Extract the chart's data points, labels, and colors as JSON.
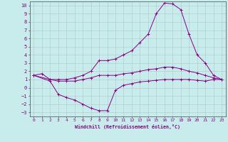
{
  "xlabel": "Windchill (Refroidissement éolien,°C)",
  "background_color": "#c8ecec",
  "grid_color": "#b0c8c8",
  "line_color": "#880088",
  "xlim": [
    -0.5,
    23.5
  ],
  "ylim": [
    -3.5,
    10.5
  ],
  "xticks": [
    0,
    1,
    2,
    3,
    4,
    5,
    6,
    7,
    8,
    9,
    10,
    11,
    12,
    13,
    14,
    15,
    16,
    17,
    18,
    19,
    20,
    21,
    22,
    23
  ],
  "yticks": [
    -3,
    -2,
    -1,
    0,
    1,
    2,
    3,
    4,
    5,
    6,
    7,
    8,
    9,
    10
  ],
  "line_top_x": [
    0,
    2,
    3,
    4,
    5,
    6,
    7,
    8,
    9,
    10,
    11,
    12,
    13,
    14,
    15,
    16,
    17,
    18,
    19,
    20,
    21,
    22,
    23
  ],
  "line_top_y": [
    1.5,
    1.0,
    1.0,
    1.0,
    1.2,
    1.5,
    2.0,
    3.3,
    3.3,
    3.5,
    4.0,
    4.5,
    5.5,
    6.5,
    9.0,
    10.3,
    10.2,
    9.5,
    6.5,
    4.0,
    3.0,
    1.5,
    1.0
  ],
  "line_mid_x": [
    0,
    1,
    2,
    3,
    4,
    5,
    6,
    7,
    8,
    9,
    10,
    11,
    12,
    13,
    14,
    15,
    16,
    17,
    18,
    19,
    20,
    21,
    22,
    23
  ],
  "line_mid_y": [
    1.5,
    1.7,
    1.0,
    0.8,
    0.8,
    0.8,
    1.0,
    1.2,
    1.5,
    1.5,
    1.5,
    1.7,
    1.8,
    2.0,
    2.2,
    2.3,
    2.5,
    2.5,
    2.3,
    2.0,
    1.8,
    1.5,
    1.2,
    1.0
  ],
  "line_bot_x": [
    0,
    2,
    3,
    4,
    5,
    6,
    7,
    8,
    9,
    10,
    11,
    12,
    13,
    14,
    15,
    16,
    17,
    18,
    19,
    20,
    21,
    22,
    23
  ],
  "line_bot_y": [
    1.5,
    0.8,
    -0.8,
    -1.2,
    -1.5,
    -2.0,
    -2.5,
    -2.8,
    -2.8,
    -0.3,
    0.3,
    0.5,
    0.7,
    0.8,
    0.9,
    1.0,
    1.0,
    1.0,
    1.0,
    0.9,
    0.8,
    1.0,
    1.0
  ]
}
